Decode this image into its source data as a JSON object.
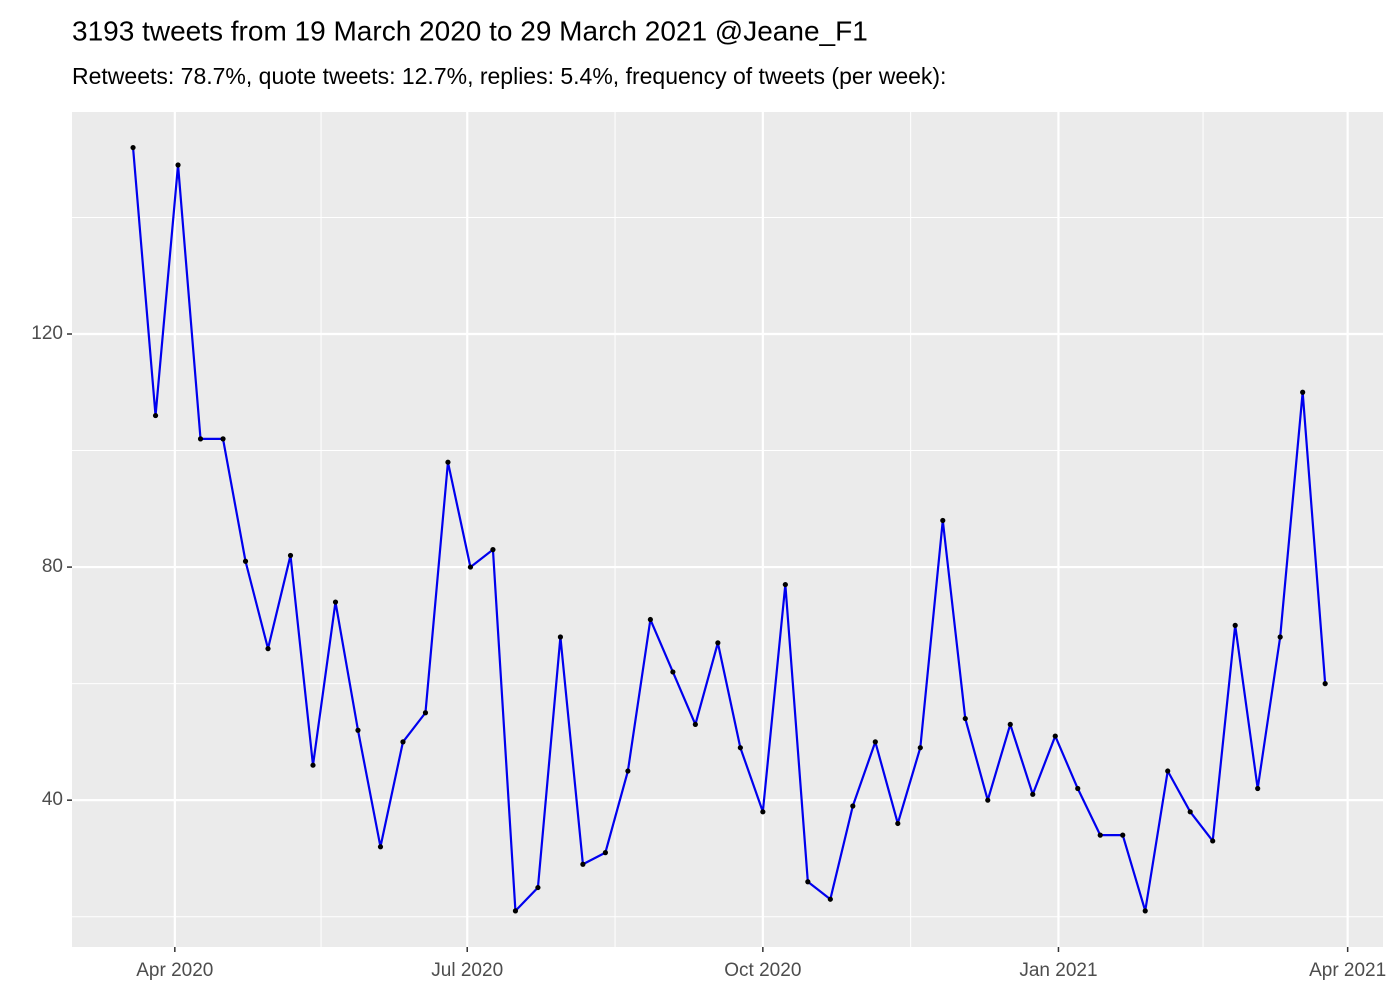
{
  "chart_data": {
    "type": "line",
    "title": "3193 tweets from 19 March 2020 to 29 March 2021 @Jeane_F1",
    "subtitle": "Retweets: 78.7%, quote tweets: 12.7%, replies: 5.4%, frequency of tweets (per week):",
    "x": [
      "2020-03-19",
      "2020-03-26",
      "2020-04-02",
      "2020-04-09",
      "2020-04-16",
      "2020-04-23",
      "2020-04-30",
      "2020-05-07",
      "2020-05-14",
      "2020-05-21",
      "2020-05-28",
      "2020-06-04",
      "2020-06-11",
      "2020-06-18",
      "2020-06-25",
      "2020-07-02",
      "2020-07-09",
      "2020-07-16",
      "2020-07-23",
      "2020-07-30",
      "2020-08-06",
      "2020-08-13",
      "2020-08-20",
      "2020-08-27",
      "2020-09-03",
      "2020-09-10",
      "2020-09-17",
      "2020-09-24",
      "2020-10-01",
      "2020-10-08",
      "2020-10-15",
      "2020-10-22",
      "2020-10-29",
      "2020-11-05",
      "2020-11-12",
      "2020-11-19",
      "2020-11-26",
      "2020-12-03",
      "2020-12-10",
      "2020-12-17",
      "2020-12-24",
      "2020-12-31",
      "2021-01-07",
      "2021-01-14",
      "2021-01-21",
      "2021-01-28",
      "2021-02-04",
      "2021-02-11",
      "2021-02-18",
      "2021-02-25",
      "2021-03-04",
      "2021-03-11",
      "2021-03-18",
      "2021-03-25"
    ],
    "series": [
      {
        "color": "#0000ee",
        "point_color": "#000000",
        "values": [
          152,
          106,
          149,
          102,
          102,
          81,
          66,
          82,
          46,
          74,
          52,
          32,
          50,
          55,
          98,
          80,
          83,
          21,
          25,
          68,
          29,
          31,
          45,
          71,
          62,
          53,
          67,
          49,
          38,
          77,
          26,
          23,
          39,
          50,
          36,
          49,
          88,
          54,
          40,
          53,
          41,
          51,
          42,
          34,
          34,
          21,
          45,
          38,
          33,
          70,
          42,
          68,
          110,
          60
        ]
      }
    ],
    "xlim": [
      "2020-02-29",
      "2021-04-12"
    ],
    "xticks": [
      {
        "value": "2020-04-01",
        "label": "Apr 2020"
      },
      {
        "value": "2020-07-01",
        "label": "Jul 2020"
      },
      {
        "value": "2020-10-01",
        "label": "Oct 2020"
      },
      {
        "value": "2021-01-01",
        "label": "Jan 2021"
      },
      {
        "value": "2021-04-01",
        "label": "Apr 2021"
      }
    ],
    "ylim": [
      14.8,
      158.1
    ],
    "yticks": [
      40,
      80,
      120
    ],
    "grid": true
  }
}
